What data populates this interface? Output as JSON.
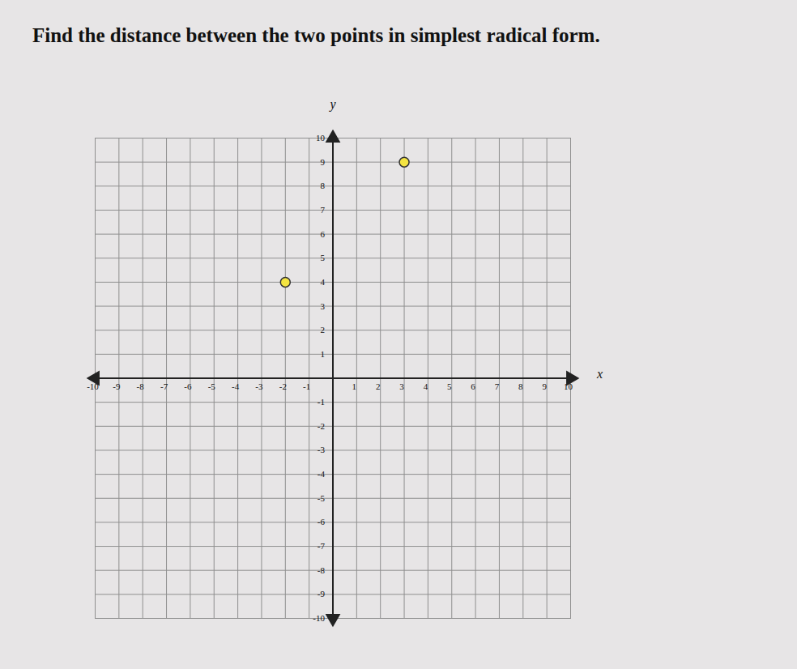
{
  "chart_data": {
    "type": "scatter",
    "title": "Find the distance between the two points in simplest radical form.",
    "x": [
      -2,
      3
    ],
    "values": [
      4,
      9
    ],
    "color": "#f4e542",
    "marker": "circle",
    "xlabel": "x",
    "ylabel": "y",
    "xlim": [
      -10,
      10
    ],
    "ylim": [
      -10,
      10
    ],
    "xticks": [
      -10,
      -9,
      -8,
      -7,
      -6,
      -5,
      -4,
      -3,
      -2,
      -1,
      1,
      2,
      3,
      4,
      5,
      6,
      7,
      8,
      9,
      10
    ],
    "yticks": [
      -10,
      -9,
      -8,
      -7,
      -6,
      -5,
      -4,
      -3,
      -2,
      -1,
      1,
      2,
      3,
      4,
      5,
      6,
      7,
      8,
      9,
      10
    ],
    "grid": true
  }
}
